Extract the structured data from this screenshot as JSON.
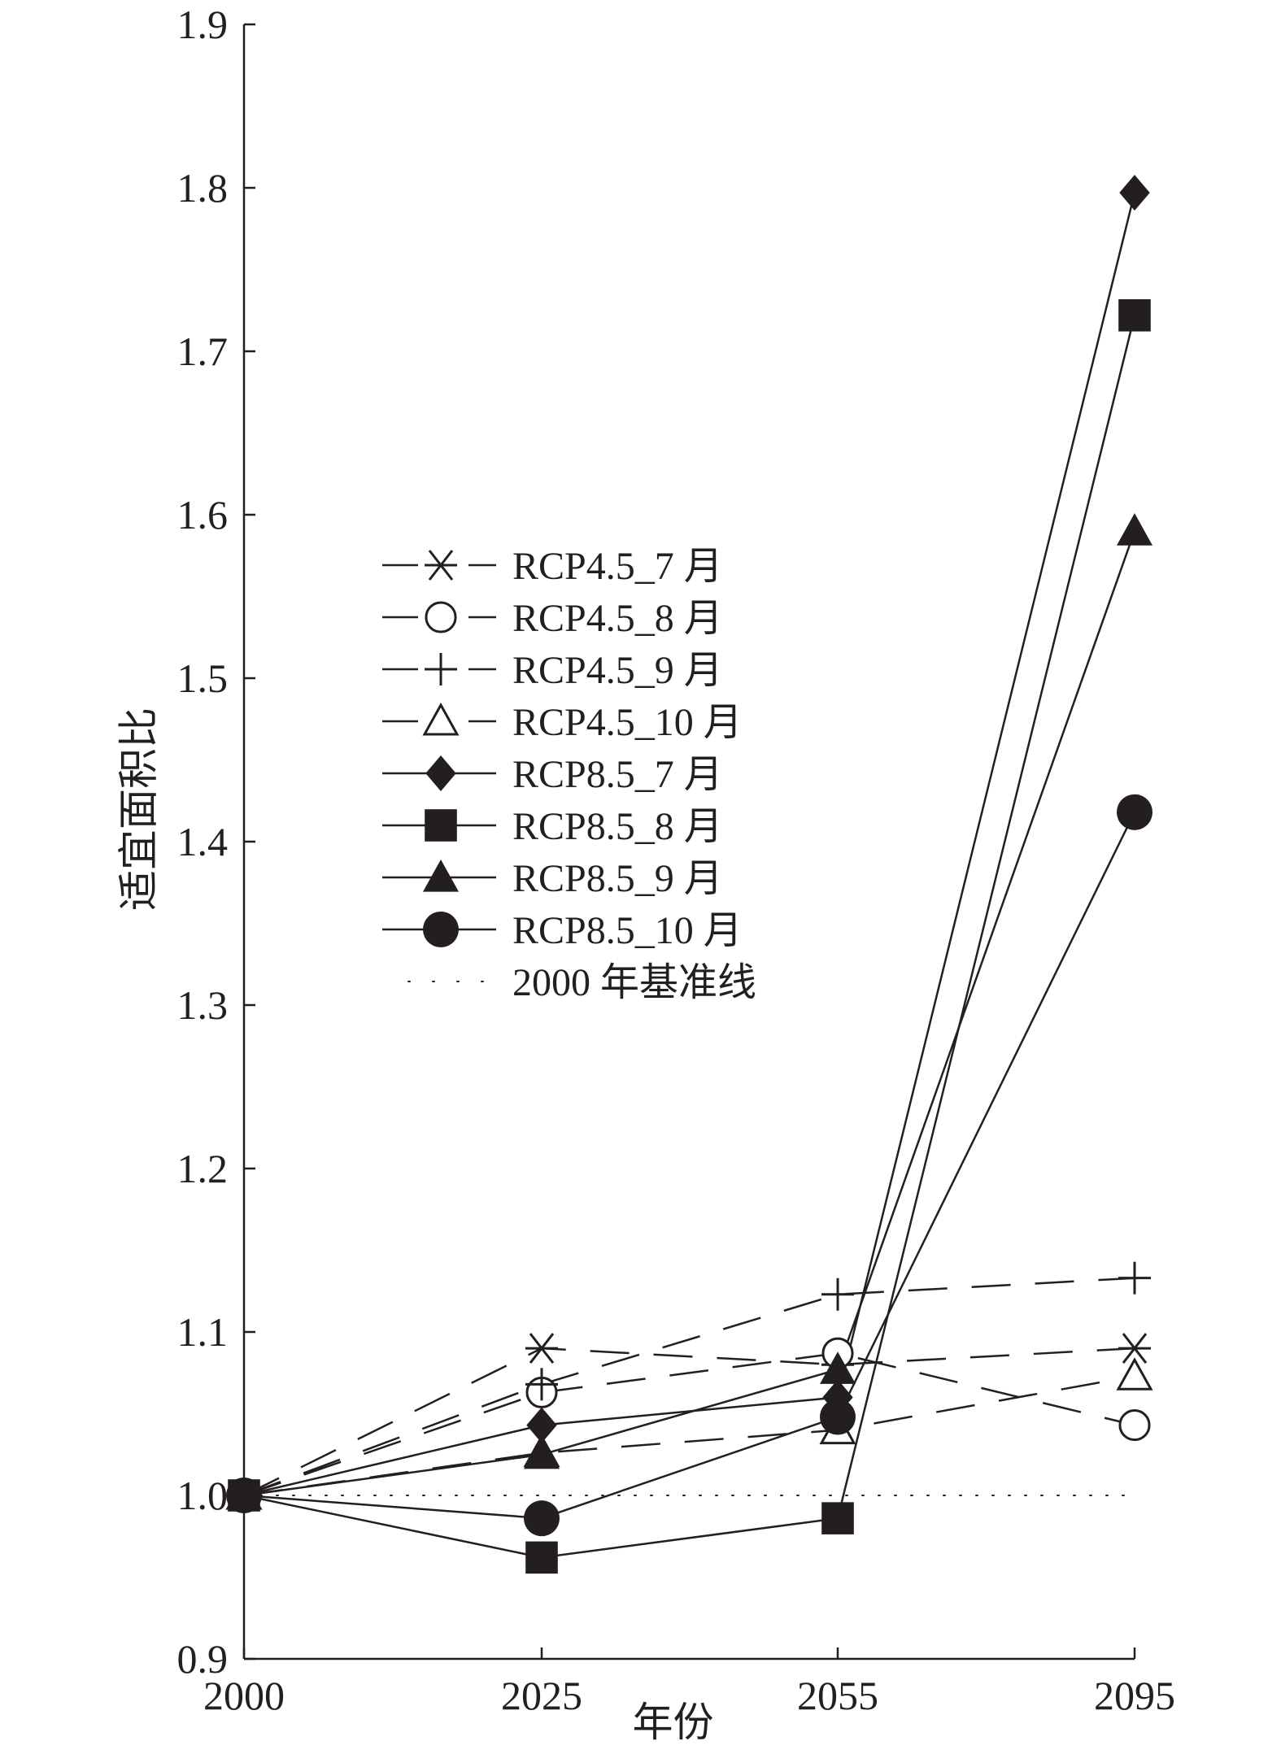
{
  "chart_data": {
    "type": "line",
    "xlabel": "年份",
    "ylabel": "适宜面积比",
    "categories": [
      "2000",
      "2025",
      "2055",
      "2095"
    ],
    "ylim": [
      0.9,
      1.9
    ],
    "yticks": [
      "0.9",
      "1.0",
      "1.1",
      "1.2",
      "1.3",
      "1.4",
      "1.5",
      "1.6",
      "1.7",
      "1.8",
      "1.9"
    ],
    "grid": false,
    "legend_position": "center-left",
    "series": [
      {
        "name": "RCP4.5_7 月",
        "marker": "asterisk",
        "dash": "dashed",
        "values": [
          1.0,
          1.09,
          1.08,
          1.09
        ]
      },
      {
        "name": "RCP4.5_8 月",
        "marker": "open-circle",
        "dash": "dashed",
        "values": [
          1.0,
          1.063,
          1.087,
          1.043
        ]
      },
      {
        "name": "RCP4.5_9 月",
        "marker": "plus",
        "dash": "dashed",
        "values": [
          1.0,
          1.068,
          1.123,
          1.133
        ]
      },
      {
        "name": "RCP4.5_10 月",
        "marker": "open-triangle",
        "dash": "dashed",
        "values": [
          1.0,
          1.026,
          1.04,
          1.073
        ]
      },
      {
        "name": "RCP8.5_7 月",
        "marker": "filled-diamond",
        "dash": "solid",
        "values": [
          1.0,
          1.043,
          1.06,
          1.797
        ]
      },
      {
        "name": "RCP8.5_8 月",
        "marker": "filled-square",
        "dash": "solid",
        "values": [
          1.0,
          0.962,
          0.986,
          1.722
        ]
      },
      {
        "name": "RCP8.5_9 月",
        "marker": "filled-triangle",
        "dash": "solid",
        "values": [
          1.0,
          1.025,
          1.077,
          1.59
        ]
      },
      {
        "name": "RCP8.5_10 月",
        "marker": "filled-circle",
        "dash": "solid",
        "values": [
          1.0,
          0.986,
          1.048,
          1.418
        ]
      }
    ],
    "baseline": {
      "name": "2000 年基准线",
      "value": 1.0,
      "dash": "dotted"
    },
    "colors": {
      "line": "#231f20",
      "axis": "#231f20",
      "background": "#ffffff"
    }
  }
}
